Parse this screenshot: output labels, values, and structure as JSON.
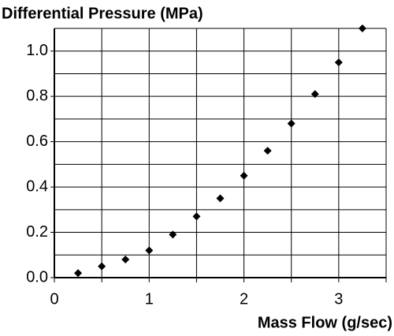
{
  "chart_data": {
    "type": "scatter",
    "title": "Differential Pressure (MPa)",
    "x_label": "Mass Flow (g/sec)",
    "x": [
      0.25,
      0.5,
      0.75,
      1.0,
      1.25,
      1.5,
      1.75,
      2.0,
      2.25,
      2.5,
      2.75,
      3.0,
      3.25
    ],
    "values": [
      0.02,
      0.05,
      0.08,
      0.12,
      0.19,
      0.27,
      0.35,
      0.45,
      0.56,
      0.68,
      0.81,
      0.95,
      1.1
    ],
    "color": "#000000",
    "xlim": [
      0,
      3.5
    ],
    "xticks": [
      0,
      1,
      2,
      3
    ],
    "xminor": [
      0.5,
      1.5,
      2.5,
      3.5
    ],
    "ylim": [
      0,
      1.1
    ],
    "yticks": [
      {
        "value": 0,
        "label": "0.0"
      },
      0.2,
      0.4,
      0.6,
      0.8,
      {
        "value": 1,
        "label": "1.0"
      }
    ],
    "yminor": [
      0.1,
      0.3,
      0.5,
      0.7,
      0.9,
      1.1
    ],
    "grid": true
  }
}
